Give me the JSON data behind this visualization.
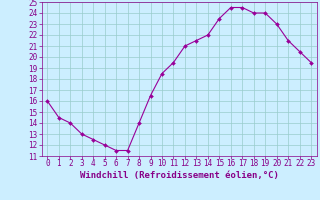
{
  "x": [
    0,
    1,
    2,
    3,
    4,
    5,
    6,
    7,
    8,
    9,
    10,
    11,
    12,
    13,
    14,
    15,
    16,
    17,
    18,
    19,
    20,
    21,
    22,
    23
  ],
  "y": [
    16.0,
    14.5,
    14.0,
    13.0,
    12.5,
    12.0,
    11.5,
    11.5,
    14.0,
    16.5,
    18.5,
    19.5,
    21.0,
    21.5,
    22.0,
    23.5,
    24.5,
    24.5,
    24.0,
    24.0,
    23.0,
    21.5,
    20.5,
    19.5
  ],
  "line_color": "#990099",
  "marker": "D",
  "marker_size": 2,
  "background_color": "#cceeff",
  "grid_color": "#99cccc",
  "ylim": [
    11,
    25
  ],
  "xlim": [
    -0.5,
    23.5
  ],
  "yticks": [
    11,
    12,
    13,
    14,
    15,
    16,
    17,
    18,
    19,
    20,
    21,
    22,
    23,
    24,
    25
  ],
  "xticks": [
    0,
    1,
    2,
    3,
    4,
    5,
    6,
    7,
    8,
    9,
    10,
    11,
    12,
    13,
    14,
    15,
    16,
    17,
    18,
    19,
    20,
    21,
    22,
    23
  ],
  "xlabel": "Windchill (Refroidissement éolien,°C)",
  "xlabel_fontsize": 6.5,
  "tick_fontsize": 5.5,
  "axis_color": "#880088"
}
